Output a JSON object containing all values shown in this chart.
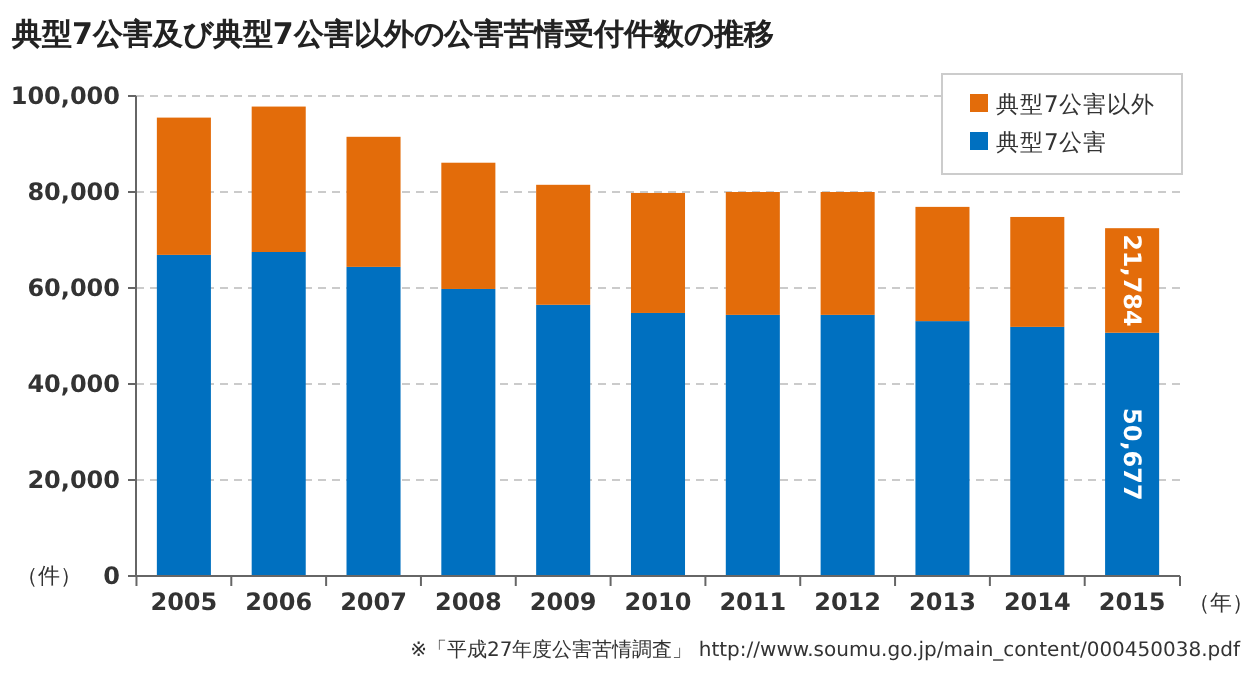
{
  "chart_data": {
    "type": "bar",
    "title": "典型7公害及び典型7公害以外の公害苦情受付件数の推移",
    "xlabel": "（年）",
    "ylabel": "（件）",
    "categories": [
      "2005",
      "2006",
      "2007",
      "2008",
      "2009",
      "2010",
      "2011",
      "2012",
      "2013",
      "2014",
      "2015"
    ],
    "stacked": true,
    "series": [
      {
        "name": "典型7公害",
        "color": "#0070c0",
        "values": [
          66900,
          67500,
          64400,
          59800,
          56500,
          54800,
          54400,
          54400,
          53100,
          51900,
          50677
        ],
        "value_labels": [
          null,
          null,
          null,
          null,
          null,
          null,
          null,
          null,
          null,
          null,
          "50,677"
        ]
      },
      {
        "name": "典型7公害以外",
        "color": "#e36c0a",
        "values": [
          28600,
          30300,
          27100,
          26300,
          25000,
          25000,
          25600,
          25600,
          23800,
          22900,
          21784
        ],
        "value_labels": [
          null,
          null,
          null,
          null,
          null,
          null,
          null,
          null,
          null,
          null,
          "21,784"
        ]
      }
    ],
    "ylim": [
      0,
      100000
    ],
    "yticks": [
      {
        "value": 0,
        "label": "0"
      },
      {
        "value": 20000,
        "label": "20,000"
      },
      {
        "value": 40000,
        "label": "40,000"
      },
      {
        "value": 60000,
        "label": "60,000"
      },
      {
        "value": 80000,
        "label": "80,000"
      },
      {
        "value": 100000,
        "label": "100,000"
      }
    ],
    "grid": "y",
    "legend": "top right",
    "annotations": [
      "※「平成27年度公害苦情調査」 http://www.soumu.go.jp/main_content/000450038.pdf"
    ]
  }
}
